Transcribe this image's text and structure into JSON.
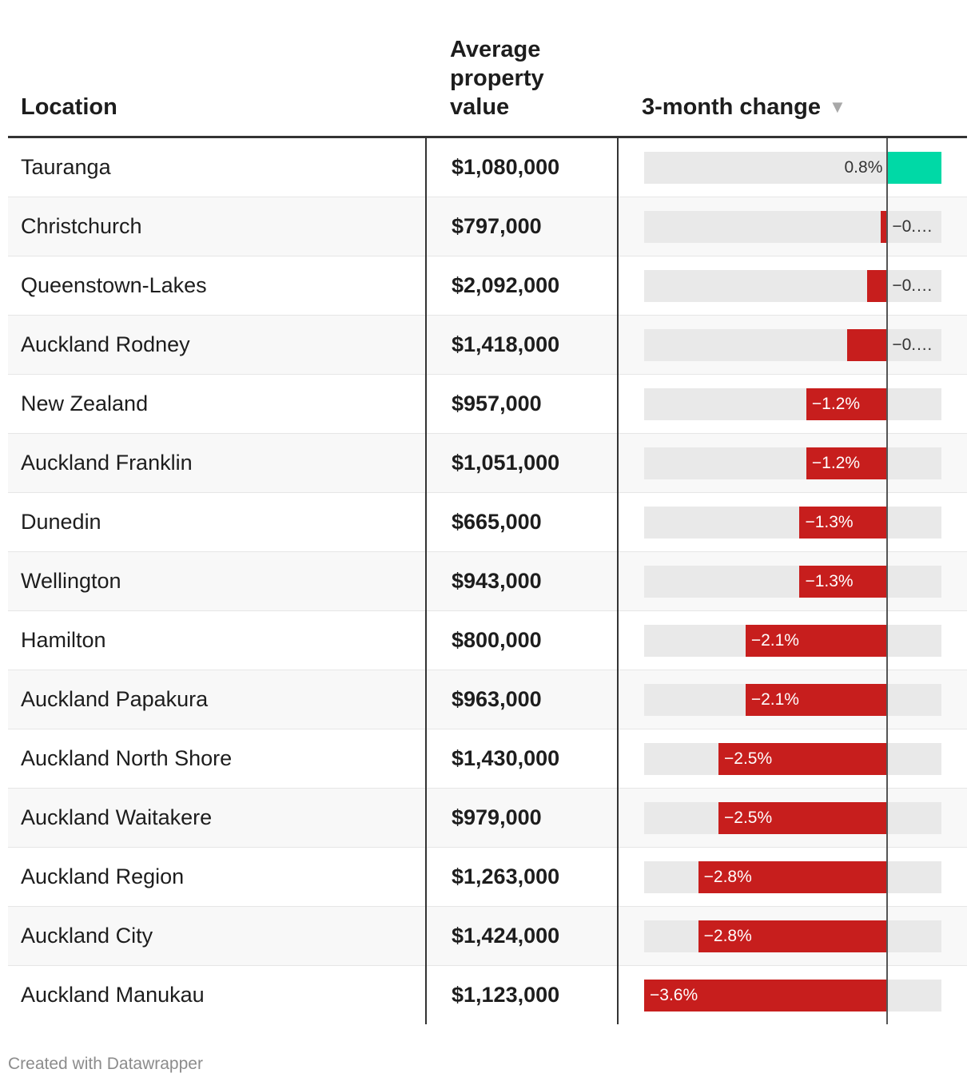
{
  "headers": {
    "location": "Location",
    "value_line1": "Average",
    "value_line2": "property",
    "value_line3": "value",
    "change": "3-month change",
    "sort_icon": "triangle-down-icon"
  },
  "colors": {
    "positive": "#00d9a6",
    "negative": "#c71e1d",
    "track": "#e9e9e9"
  },
  "chart_data": {
    "type": "table",
    "columns": [
      "Location",
      "Average property value",
      "3-month change"
    ],
    "change_range": [
      -3.6,
      0.8
    ],
    "rows": [
      {
        "location": "Tauranga",
        "value": "$1,080,000",
        "change": 0.8,
        "change_label": "0.8%"
      },
      {
        "location": "Christchurch",
        "value": "$797,000",
        "change": -0.1,
        "change_label": "−0.…"
      },
      {
        "location": "Queenstown-Lakes",
        "value": "$2,092,000",
        "change": -0.3,
        "change_label": "−0.…"
      },
      {
        "location": "Auckland Rodney",
        "value": "$1,418,000",
        "change": -0.6,
        "change_label": "−0.…"
      },
      {
        "location": "New Zealand",
        "value": "$957,000",
        "change": -1.2,
        "change_label": "−1.2%"
      },
      {
        "location": "Auckland Franklin",
        "value": "$1,051,000",
        "change": -1.2,
        "change_label": "−1.2%"
      },
      {
        "location": "Dunedin",
        "value": "$665,000",
        "change": -1.3,
        "change_label": "−1.3%"
      },
      {
        "location": "Wellington",
        "value": "$943,000",
        "change": -1.3,
        "change_label": "−1.3%"
      },
      {
        "location": "Hamilton",
        "value": "$800,000",
        "change": -2.1,
        "change_label": "−2.1%"
      },
      {
        "location": "Auckland Papakura",
        "value": "$963,000",
        "change": -2.1,
        "change_label": "−2.1%"
      },
      {
        "location": "Auckland North Shore",
        "value": "$1,430,000",
        "change": -2.5,
        "change_label": "−2.5%"
      },
      {
        "location": "Auckland Waitakere",
        "value": "$979,000",
        "change": -2.5,
        "change_label": "−2.5%"
      },
      {
        "location": "Auckland Region",
        "value": "$1,263,000",
        "change": -2.8,
        "change_label": "−2.8%"
      },
      {
        "location": "Auckland City",
        "value": "$1,424,000",
        "change": -2.8,
        "change_label": "−2.8%"
      },
      {
        "location": "Auckland Manukau",
        "value": "$1,123,000",
        "change": -3.6,
        "change_label": "−3.6%"
      }
    ]
  },
  "footer": {
    "credit": "Created with Datawrapper"
  }
}
